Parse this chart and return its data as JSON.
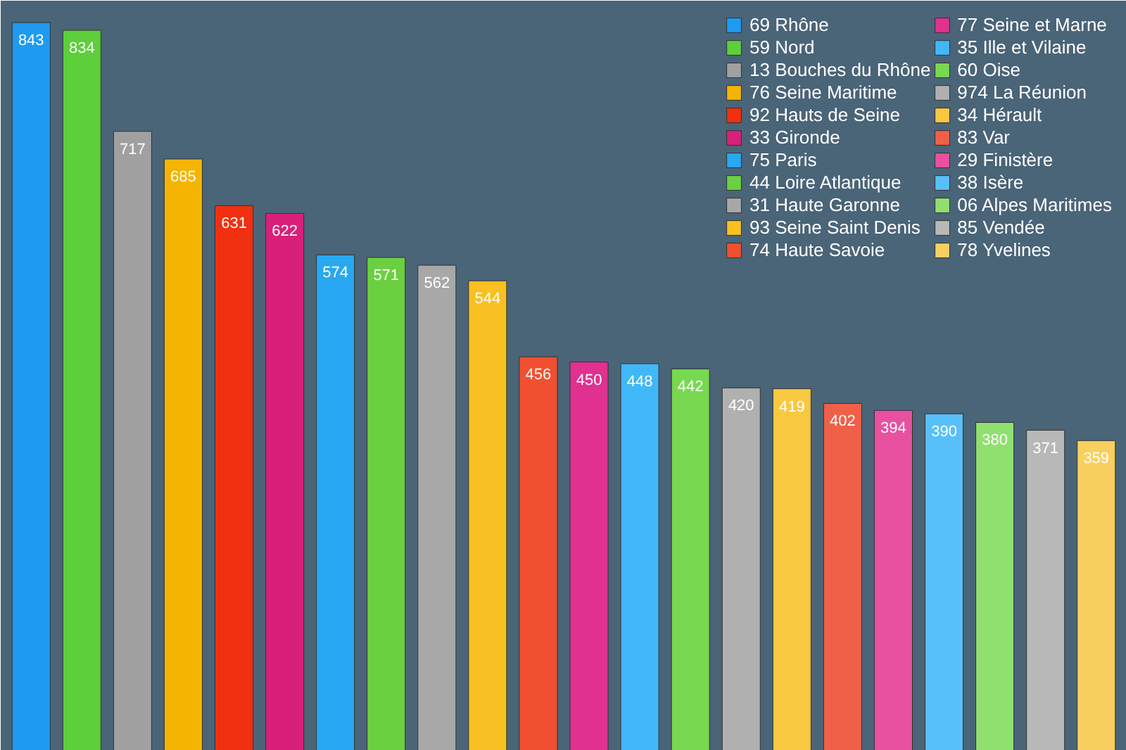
{
  "chart_data": {
    "type": "bar",
    "stacked": true,
    "tick_labels": false,
    "categories": [
      null,
      null,
      null,
      null,
      null,
      null,
      null,
      null,
      null,
      null,
      null,
      null,
      null,
      null,
      null,
      null,
      null,
      null,
      null,
      null,
      null,
      null
    ],
    "series": [
      {
        "name": "69 Rhône",
        "color": "#1e9bf0",
        "values": [
          843,
          null,
          null,
          null,
          null,
          null,
          null,
          null,
          null,
          null,
          null,
          null,
          null,
          null,
          null,
          null,
          null,
          null,
          null,
          null,
          null,
          null
        ]
      },
      {
        "name": "59 Nord",
        "color": "#5ccf3a",
        "values": [
          null,
          834,
          null,
          null,
          null,
          null,
          null,
          null,
          null,
          null,
          null,
          null,
          null,
          null,
          null,
          null,
          null,
          null,
          null,
          null,
          null,
          null
        ]
      },
      {
        "name": "13 Bouches du Rhône",
        "color": "#a0a0a0",
        "values": [
          null,
          null,
          717,
          null,
          null,
          null,
          null,
          null,
          null,
          null,
          null,
          null,
          null,
          null,
          null,
          null,
          null,
          null,
          null,
          null,
          null,
          null
        ]
      },
      {
        "name": "76 Seine Maritime",
        "color": "#f5b400",
        "values": [
          null,
          null,
          null,
          685,
          null,
          null,
          null,
          null,
          null,
          null,
          null,
          null,
          null,
          null,
          null,
          null,
          null,
          null,
          null,
          null,
          null,
          null
        ]
      },
      {
        "name": "92 Hauts de Seine",
        "color": "#f03010",
        "values": [
          null,
          null,
          null,
          null,
          631,
          null,
          null,
          null,
          null,
          null,
          null,
          null,
          null,
          null,
          null,
          null,
          null,
          null,
          null,
          null,
          null,
          null
        ]
      },
      {
        "name": "33 Gironde",
        "color": "#d8207a",
        "values": [
          null,
          null,
          null,
          null,
          null,
          622,
          null,
          null,
          null,
          null,
          null,
          null,
          null,
          null,
          null,
          null,
          null,
          null,
          null,
          null,
          null,
          null
        ]
      },
      {
        "name": "75 Paris",
        "color": "#28a8f0",
        "values": [
          null,
          null,
          null,
          null,
          null,
          null,
          574,
          null,
          null,
          null,
          null,
          null,
          null,
          null,
          null,
          null,
          null,
          null,
          null,
          null,
          null,
          null
        ]
      },
      {
        "name": "44 Loire Atlantique",
        "color": "#6ad040",
        "values": [
          null,
          null,
          null,
          null,
          null,
          null,
          null,
          571,
          null,
          null,
          null,
          null,
          null,
          null,
          null,
          null,
          null,
          null,
          null,
          null,
          null,
          null
        ]
      },
      {
        "name": "31 Haute Garonne",
        "color": "#a8a8a8",
        "values": [
          null,
          null,
          null,
          null,
          null,
          null,
          null,
          null,
          562,
          null,
          null,
          null,
          null,
          null,
          null,
          null,
          null,
          null,
          null,
          null,
          null,
          null
        ]
      },
      {
        "name": "93 Seine Saint Denis",
        "color": "#f8c020",
        "values": [
          null,
          null,
          null,
          null,
          null,
          null,
          null,
          null,
          null,
          544,
          null,
          null,
          null,
          null,
          null,
          null,
          null,
          null,
          null,
          null,
          null,
          null
        ]
      },
      {
        "name": "74 Haute Savoie",
        "color": "#f05030",
        "values": [
          null,
          null,
          null,
          null,
          null,
          null,
          null,
          null,
          null,
          null,
          456,
          null,
          null,
          null,
          null,
          null,
          null,
          null,
          null,
          null,
          null,
          null
        ]
      },
      {
        "name": "77 Seine et Marne",
        "color": "#e03090",
        "values": [
          null,
          null,
          null,
          null,
          null,
          null,
          null,
          null,
          null,
          null,
          null,
          450,
          null,
          null,
          null,
          null,
          null,
          null,
          null,
          null,
          null,
          null
        ]
      },
      {
        "name": "35 Ille et Vilaine",
        "color": "#40b8f8",
        "values": [
          null,
          null,
          null,
          null,
          null,
          null,
          null,
          null,
          null,
          null,
          null,
          null,
          448,
          null,
          null,
          null,
          null,
          null,
          null,
          null,
          null,
          null
        ]
      },
      {
        "name": "60 Oise",
        "color": "#78d850",
        "values": [
          null,
          null,
          null,
          null,
          null,
          null,
          null,
          null,
          null,
          null,
          null,
          null,
          null,
          442,
          null,
          null,
          null,
          null,
          null,
          null,
          null,
          null
        ]
      },
      {
        "name": "974 La Réunion",
        "color": "#b0b0b0",
        "values": [
          null,
          null,
          null,
          null,
          null,
          null,
          null,
          null,
          null,
          null,
          null,
          null,
          null,
          null,
          420,
          null,
          null,
          null,
          null,
          null,
          null,
          null
        ]
      },
      {
        "name": "34 Hérault",
        "color": "#f8c840",
        "values": [
          null,
          null,
          null,
          null,
          null,
          null,
          null,
          null,
          null,
          null,
          null,
          null,
          null,
          null,
          null,
          419,
          null,
          null,
          null,
          null,
          null,
          null
        ]
      },
      {
        "name": "83 Var",
        "color": "#f06048",
        "values": [
          null,
          null,
          null,
          null,
          null,
          null,
          null,
          null,
          null,
          null,
          null,
          null,
          null,
          null,
          null,
          null,
          402,
          null,
          null,
          null,
          null,
          null
        ]
      },
      {
        "name": "29 Finistère",
        "color": "#e850a0",
        "values": [
          null,
          null,
          null,
          null,
          null,
          null,
          null,
          null,
          null,
          null,
          null,
          null,
          null,
          null,
          null,
          null,
          null,
          394,
          null,
          null,
          null,
          null
        ]
      },
      {
        "name": "38 Isère",
        "color": "#58c0f8",
        "values": [
          null,
          null,
          null,
          null,
          null,
          null,
          null,
          null,
          null,
          null,
          null,
          null,
          null,
          null,
          null,
          null,
          null,
          null,
          390,
          null,
          null,
          null
        ]
      },
      {
        "name": "06 Alpes Maritimes",
        "color": "#90e070",
        "values": [
          null,
          null,
          null,
          null,
          null,
          null,
          null,
          null,
          null,
          null,
          null,
          null,
          null,
          null,
          null,
          null,
          null,
          null,
          null,
          380,
          null,
          null
        ]
      },
      {
        "name": "85 Vendée",
        "color": "#b8b8b8",
        "values": [
          null,
          null,
          null,
          null,
          null,
          null,
          null,
          null,
          null,
          null,
          null,
          null,
          null,
          null,
          null,
          null,
          null,
          null,
          null,
          null,
          371,
          null
        ]
      },
      {
        "name": "78 Yvelines",
        "color": "#f8d060",
        "values": [
          null,
          null,
          null,
          null,
          null,
          null,
          null,
          null,
          null,
          null,
          null,
          null,
          null,
          null,
          null,
          null,
          null,
          null,
          null,
          null,
          null,
          359
        ]
      }
    ],
    "data_labels": true,
    "legend": "top right"
  }
}
